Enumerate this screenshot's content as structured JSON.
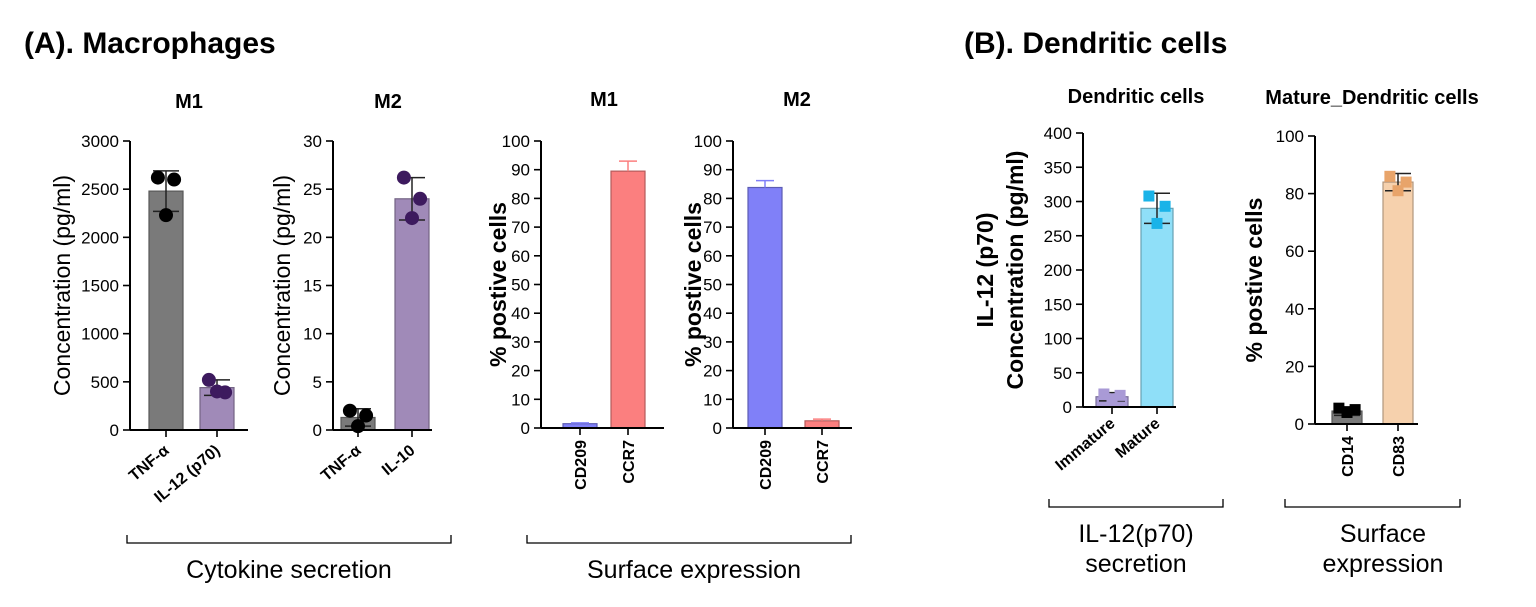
{
  "panels": {
    "a_title": "(A). Macrophages",
    "b_title": "(B). Dendritic cells"
  },
  "groups": [
    {
      "label": [
        "Cytokine secretion"
      ]
    },
    {
      "label": [
        "Surface expression"
      ]
    },
    {
      "label": [
        "IL-12(p70)",
        "secretion"
      ]
    },
    {
      "label": [
        "Surface",
        "expression"
      ]
    }
  ],
  "chart_data": [
    {
      "type": "bar",
      "title": "M1",
      "ylabel": [
        "Concentration (pg/ml)"
      ],
      "ylabel_bold": false,
      "ylim": [
        0,
        3000
      ],
      "ytick_step": 500,
      "categories": [
        "TNF-α",
        "IL-12 (p70)"
      ],
      "values": [
        2480,
        440
      ],
      "errors": [
        210,
        80
      ],
      "colors": [
        "#7a7a7a",
        "#a08ab8"
      ],
      "points": [
        [
          2620,
          2600,
          2230
        ],
        [
          520,
          390,
          400
        ]
      ],
      "point_colors": [
        "#000000",
        "#3d1a5e"
      ],
      "marker": "circle"
    },
    {
      "type": "bar",
      "title": "M2",
      "ylabel": [
        "Concentration (pg/ml)"
      ],
      "ylabel_bold": false,
      "ylim": [
        0,
        30
      ],
      "ytick_step": 5,
      "categories": [
        "TNF-α",
        "IL-10"
      ],
      "values": [
        1.3,
        24
      ],
      "errors": [
        0.9,
        2.2
      ],
      "colors": [
        "#7a7a7a",
        "#a08ab8"
      ],
      "points": [
        [
          2.0,
          1.5,
          0.4
        ],
        [
          26.2,
          24.0,
          22.0
        ]
      ],
      "point_colors": [
        "#000000",
        "#3d1a5e"
      ],
      "marker": "circle"
    },
    {
      "type": "bar",
      "title": "M1",
      "ylabel": [
        "% postive cells"
      ],
      "ylabel_bold": true,
      "ylim": [
        0,
        100
      ],
      "ytick_step": 10,
      "categories": [
        "CD209",
        "CCR7"
      ],
      "values": [
        1.5,
        89.5
      ],
      "errors": [
        0.3,
        3.5
      ],
      "colors": [
        "#8080f8",
        "#fb7f7f"
      ],
      "points": [],
      "point_colors": [],
      "marker": "none"
    },
    {
      "type": "bar",
      "title": "M2",
      "ylabel": [
        "% postive cells"
      ],
      "ylabel_bold": true,
      "ylim": [
        0,
        100
      ],
      "ytick_step": 10,
      "categories": [
        "CD209",
        "CCR7"
      ],
      "values": [
        83.8,
        2.5
      ],
      "errors": [
        2.4,
        0.6
      ],
      "colors": [
        "#8080f8",
        "#fb7f7f"
      ],
      "points": [],
      "point_colors": [],
      "marker": "none"
    },
    {
      "type": "bar",
      "title": "Dendritic cells",
      "ylabel": [
        "IL-12 (p70)",
        "Concentration (pg/ml)"
      ],
      "ylabel_bold": true,
      "ylim": [
        0,
        400
      ],
      "ytick_step": 50,
      "categories": [
        "Immature",
        "Mature"
      ],
      "values": [
        15,
        290
      ],
      "errors": [
        6,
        22
      ],
      "colors": [
        "#a99ad6",
        "#8fdff8"
      ],
      "points": [
        [
          19,
          17,
          12
        ],
        [
          308,
          293,
          268
        ]
      ],
      "point_colors": [
        "#a99ad6",
        "#1ab3e8"
      ],
      "marker": "square"
    },
    {
      "type": "bar",
      "title": "Mature_Dendritic cells",
      "ylabel": [
        "% postive cells"
      ],
      "ylabel_bold": true,
      "ylim": [
        0,
        100
      ],
      "ytick_step": 20,
      "categories": [
        "CD14",
        "CD83"
      ],
      "values": [
        4.5,
        84
      ],
      "errors": [
        1.5,
        3
      ],
      "colors": [
        "#7a7a7a",
        "#f6d1ad"
      ],
      "points": [
        [
          5.5,
          5.0,
          4.0
        ],
        [
          86,
          84,
          81
        ]
      ],
      "point_colors": [
        "#000000",
        "#e8a46a"
      ],
      "marker": "square"
    }
  ]
}
